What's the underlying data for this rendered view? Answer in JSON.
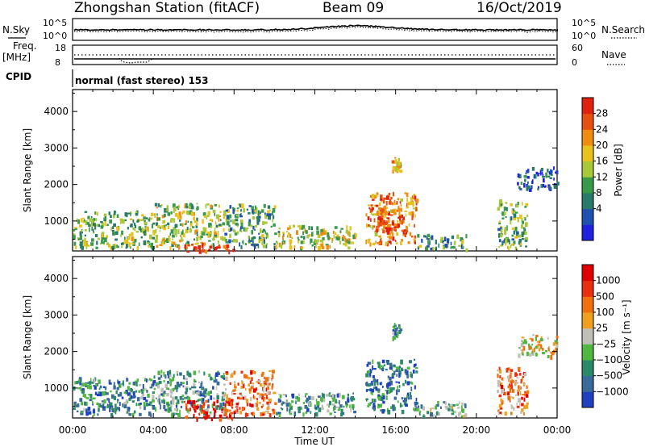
{
  "header": {
    "station": "Zhongshan Station (fitACF)",
    "beam": "Beam 09",
    "date": "16/Oct/2019"
  },
  "strip1": {
    "left_label": "N.Sky",
    "left_ticks": [
      "10^5",
      "10^0"
    ],
    "right_ticks": [
      "10^5",
      "10^0"
    ],
    "right_label": "N.Search"
  },
  "strip2": {
    "left_label_top": "Freq.",
    "left_label_bottom": "[MHz]",
    "left_ticks": [
      "18",
      "8"
    ],
    "right_ticks": [
      "60",
      "0"
    ],
    "right_label": "Nave"
  },
  "cpid": {
    "label": "CPID",
    "text": "normal (fast stereo) 153"
  },
  "chart_data": [
    {
      "type": "heatmap",
      "name": "power-panel",
      "ylabel": "Slant Range [km]",
      "xlabel": "",
      "x_ticks": [
        "00:00",
        "04:00",
        "08:00",
        "12:00",
        "16:00",
        "20:00",
        "00:00"
      ],
      "xlim_hours": [
        0,
        24
      ],
      "y_ticks": [
        1000,
        2000,
        3000,
        4000
      ],
      "ylim": [
        180,
        4600
      ],
      "colorbar": {
        "label": "Power [dB]",
        "ticks": [
          "28",
          "24",
          "20",
          "16",
          "12",
          "8",
          "4"
        ],
        "colors": [
          "#2020e0",
          "#2050b0",
          "#2a7a6a",
          "#3a9a4a",
          "#a8c83a",
          "#e6c21a",
          "#f08c10",
          "#e85010",
          "#e02010"
        ]
      },
      "regions": [
        {
          "t0": 0.0,
          "t1": 4.0,
          "r0": 300,
          "r1": 1300,
          "level": 0.45
        },
        {
          "t0": 4.0,
          "t1": 7.5,
          "r0": 300,
          "r1": 1500,
          "level": 0.5
        },
        {
          "t0": 5.5,
          "t1": 8.0,
          "r0": 180,
          "r1": 400,
          "level": 0.95
        },
        {
          "t0": 7.5,
          "t1": 10.0,
          "r0": 300,
          "r1": 1500,
          "level": 0.35
        },
        {
          "t0": 10.0,
          "t1": 14.0,
          "r0": 300,
          "r1": 900,
          "level": 0.55
        },
        {
          "t0": 14.5,
          "t1": 17.0,
          "r0": 400,
          "r1": 1800,
          "level": 0.75
        },
        {
          "t0": 15.0,
          "t1": 16.5,
          "r0": 700,
          "r1": 1400,
          "level": 0.9
        },
        {
          "t0": 17.0,
          "t1": 19.5,
          "r0": 250,
          "r1": 650,
          "level": 0.35
        },
        {
          "t0": 21.0,
          "t1": 22.5,
          "r0": 300,
          "r1": 1600,
          "level": 0.4
        },
        {
          "t0": 22.0,
          "t1": 24.0,
          "r0": 1900,
          "r1": 2500,
          "level": 0.2
        },
        {
          "t0": 15.8,
          "t1": 16.2,
          "r0": 2400,
          "r1": 2800,
          "level": 0.6
        }
      ]
    },
    {
      "type": "heatmap",
      "name": "velocity-panel",
      "ylabel": "Slant Range [km]",
      "xlabel": "Time UT",
      "x_ticks": [
        "00:00",
        "04:00",
        "08:00",
        "12:00",
        "16:00",
        "20:00",
        "00:00"
      ],
      "xlim_hours": [
        0,
        24
      ],
      "y_ticks": [
        1000,
        2000,
        3000,
        4000
      ],
      "ylim": [
        180,
        4600
      ],
      "colorbar": {
        "label": "Velocity [m s⁻¹]",
        "ticks": [
          "1000",
          "500",
          "100",
          "25",
          "−25",
          "−100",
          "−500",
          "−1000"
        ],
        "colors": [
          "#2040c0",
          "#3a6a9a",
          "#2a8a6a",
          "#50b840",
          "#c0c0b8",
          "#f0a020",
          "#f07010",
          "#e83010",
          "#e00000"
        ]
      },
      "regions": [
        {
          "t0": 0.0,
          "t1": 4.0,
          "r0": 300,
          "r1": 1300,
          "level": 0.25
        },
        {
          "t0": 4.0,
          "t1": 7.5,
          "r0": 300,
          "r1": 1500,
          "level": 0.3
        },
        {
          "t0": 5.5,
          "t1": 8.0,
          "r0": 180,
          "r1": 700,
          "level": 0.9
        },
        {
          "t0": 7.5,
          "t1": 10.0,
          "r0": 300,
          "r1": 1500,
          "level": 0.7
        },
        {
          "t0": 10.0,
          "t1": 14.0,
          "r0": 300,
          "r1": 900,
          "level": 0.3
        },
        {
          "t0": 14.5,
          "t1": 17.0,
          "r0": 400,
          "r1": 1800,
          "level": 0.2
        },
        {
          "t0": 17.0,
          "t1": 19.5,
          "r0": 250,
          "r1": 650,
          "level": 0.35
        },
        {
          "t0": 21.0,
          "t1": 22.5,
          "r0": 300,
          "r1": 1600,
          "level": 0.7
        },
        {
          "t0": 22.0,
          "t1": 24.0,
          "r0": 1900,
          "r1": 2500,
          "level": 0.55
        },
        {
          "t0": 15.8,
          "t1": 16.2,
          "r0": 2400,
          "r1": 2800,
          "level": 0.25
        }
      ]
    }
  ]
}
